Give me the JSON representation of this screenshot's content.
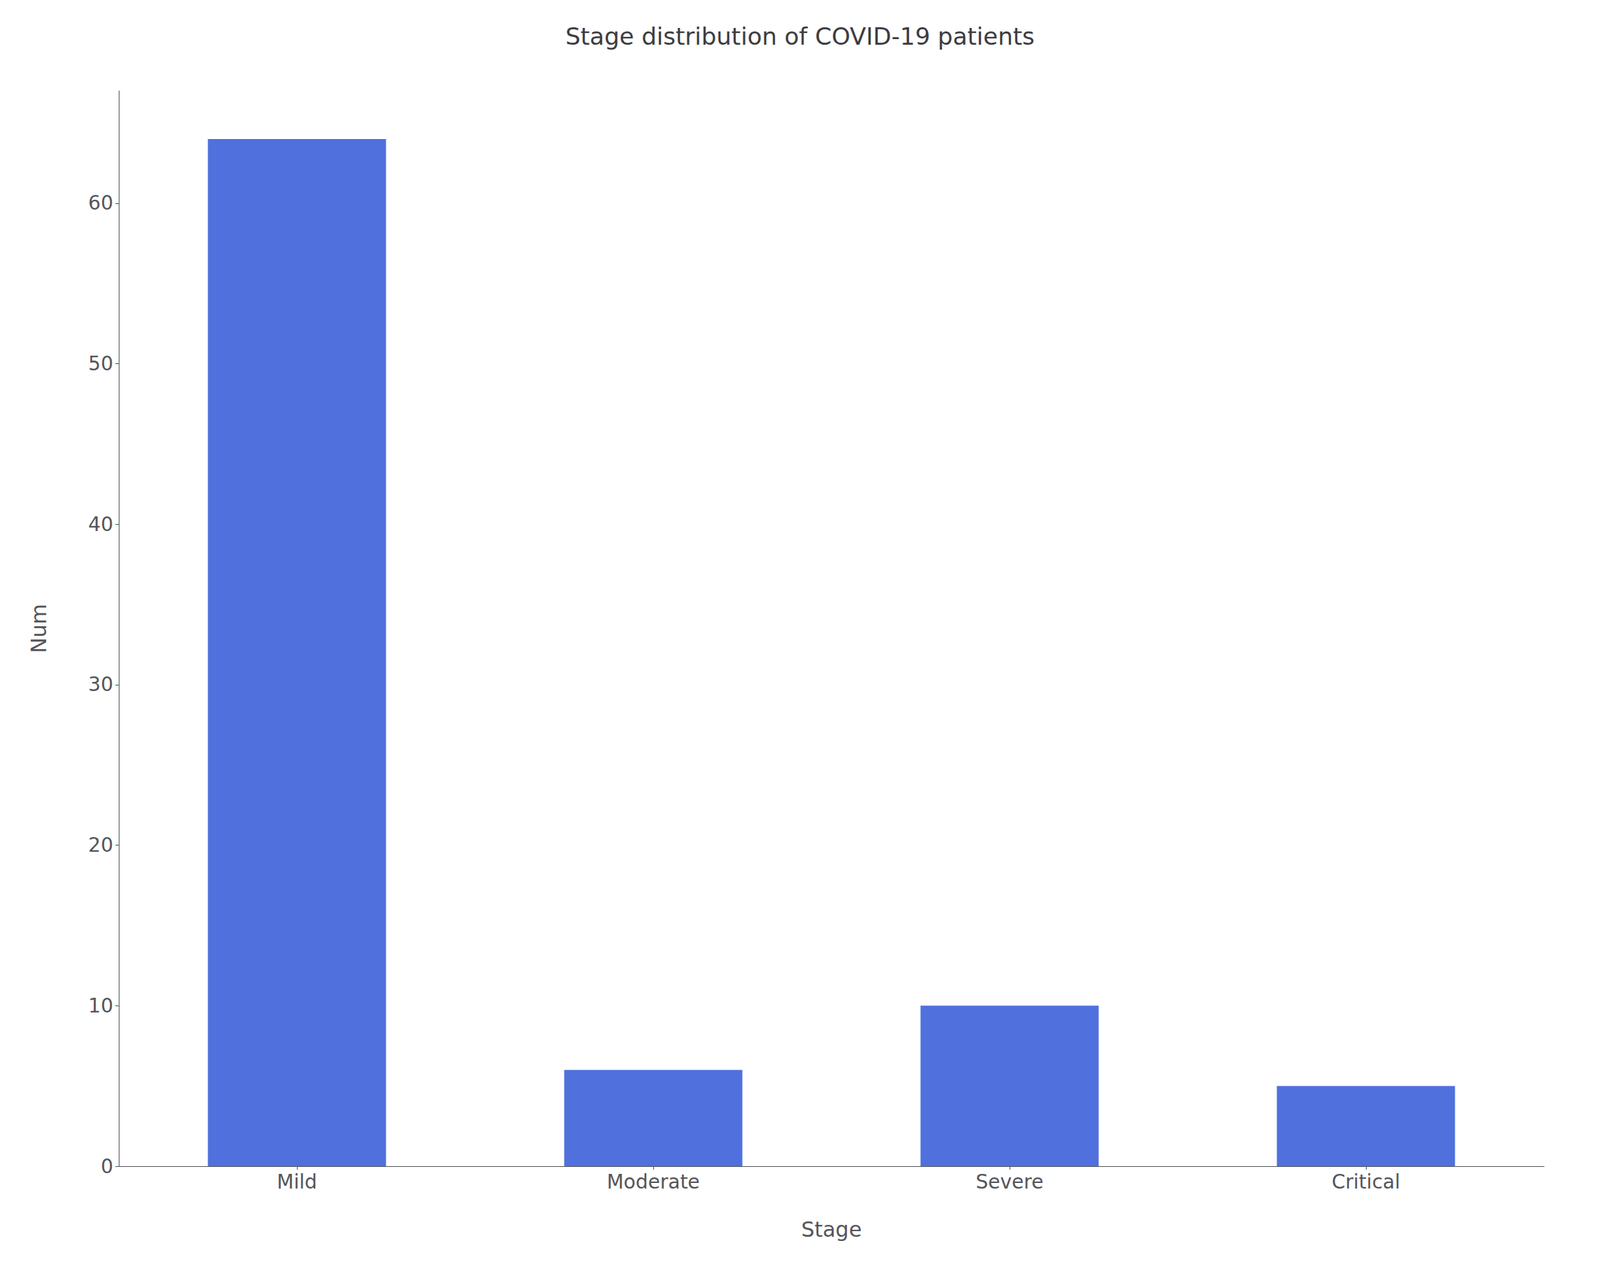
{
  "chart_data": {
    "type": "bar",
    "title": "Stage distribution of COVID-19 patients",
    "categories": [
      "Mild",
      "Moderate",
      "Severe",
      "Critical"
    ],
    "values": [
      64,
      6,
      10,
      5
    ],
    "xlabel": "Stage",
    "ylabel": "Num",
    "ylim": [
      0,
      67
    ],
    "yticks": [
      0,
      10,
      20,
      30,
      40,
      50,
      60
    ],
    "grid": false
  }
}
